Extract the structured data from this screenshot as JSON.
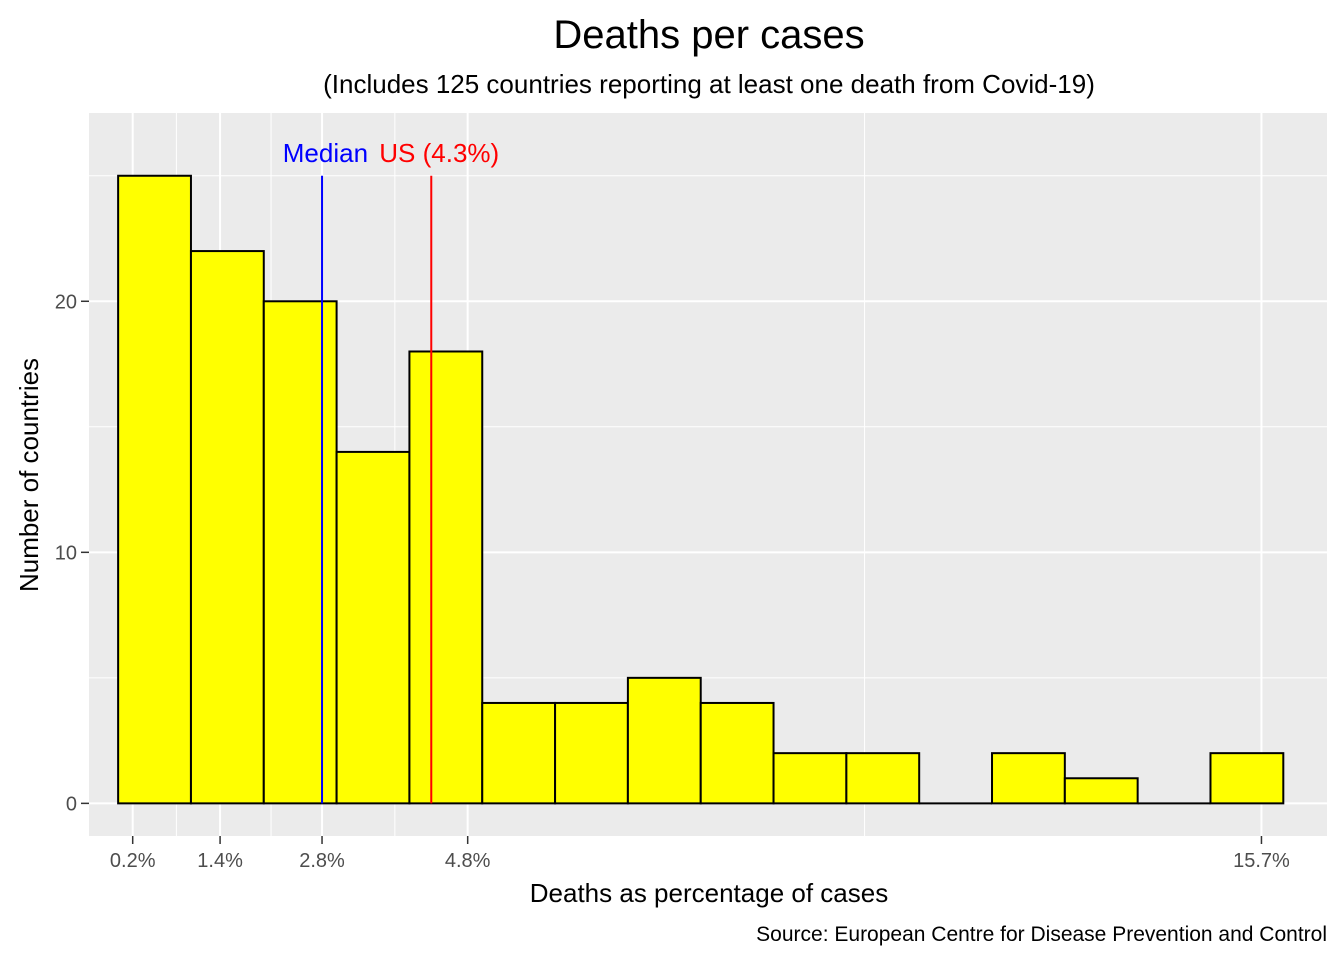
{
  "chart_data": {
    "type": "bar",
    "title": "Deaths per cases",
    "subtitle": "(Includes 125 countries reporting at least one death from Covid-19)",
    "xlabel": "Deaths as percentage of cases",
    "ylabel": "Number of countries",
    "caption": "Source: European Centre for Disease Prevention and Control",
    "x_unit": "percent",
    "bin_start": 0,
    "bin_width": 1,
    "counts": [
      25,
      22,
      20,
      14,
      18,
      4,
      4,
      5,
      4,
      2,
      2,
      0,
      2,
      1,
      0,
      2
    ],
    "xlim": [
      -0.4,
      16.6
    ],
    "ylim": [
      -1.3,
      27.5
    ],
    "y_ticks": [
      0,
      10,
      20
    ],
    "y_tick_labels": [
      "0",
      "10",
      "20"
    ],
    "x_ticks": [
      0.2,
      1.4,
      2.8,
      4.8,
      15.7
    ],
    "x_tick_labels": [
      "0.2%",
      "1.4%",
      "2.8%",
      "4.8%",
      "15.7%"
    ],
    "x_minor_grid": [
      0.8,
      2.1,
      3.8,
      10.25
    ],
    "y_minor_grid": [
      5,
      15,
      25
    ],
    "grid": true,
    "legend": "none",
    "reference_lines": [
      {
        "label": "Median",
        "x": 2.8,
        "color": "#0000ff"
      },
      {
        "label": "US (4.3%)",
        "x": 4.3,
        "color": "#ff0000"
      }
    ],
    "bar_fill": "#ffff00",
    "bar_outline": "#000000",
    "panel_background": "#ebebeb",
    "grid_color": "#ffffff"
  }
}
